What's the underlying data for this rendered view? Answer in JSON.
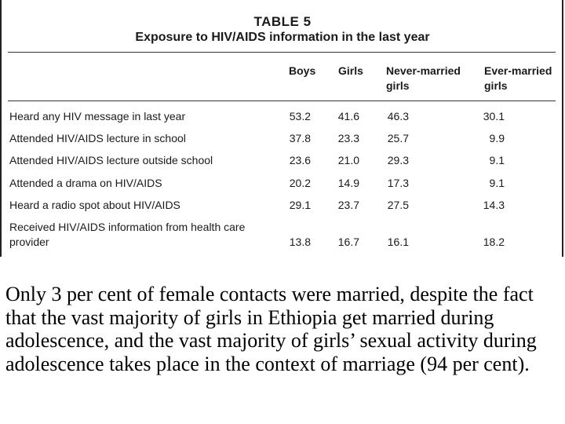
{
  "table": {
    "title": "TABLE 5",
    "subtitle": "Exposure to HIV/AIDS information in the last year",
    "columns": [
      "Boys",
      "Girls",
      "Never-married girls",
      "Ever-married girls"
    ],
    "rows": [
      {
        "label": "Heard any HIV message in last year",
        "values": [
          "53.2",
          "41.6",
          "46.3",
          "30.1"
        ]
      },
      {
        "label": "Attended HIV/AIDS lecture in school",
        "values": [
          "37.8",
          "23.3",
          "25.7",
          "9.9"
        ]
      },
      {
        "label": "Attended HIV/AIDS lecture outside school",
        "values": [
          "23.6",
          "21.0",
          "29.3",
          "9.1"
        ]
      },
      {
        "label": "Attended a drama on HIV/AIDS",
        "values": [
          "20.2",
          "14.9",
          "17.3",
          "9.1"
        ]
      },
      {
        "label": "Heard a radio spot about HIV/AIDS",
        "values": [
          "29.1",
          "23.7",
          "27.5",
          "14.3"
        ]
      },
      {
        "label": "Received HIV/AIDS information from health care provider",
        "values": [
          "13.8",
          "16.7",
          "16.1",
          "18.2"
        ]
      }
    ]
  },
  "caption": "Only 3 per cent of female contacts were married, despite the fact that the vast majority of girls in Ethiopia get married during adolescence, and the vast majority of girls’ sexual activity during adolescence takes place in the context of marriage (94 per cent)."
}
